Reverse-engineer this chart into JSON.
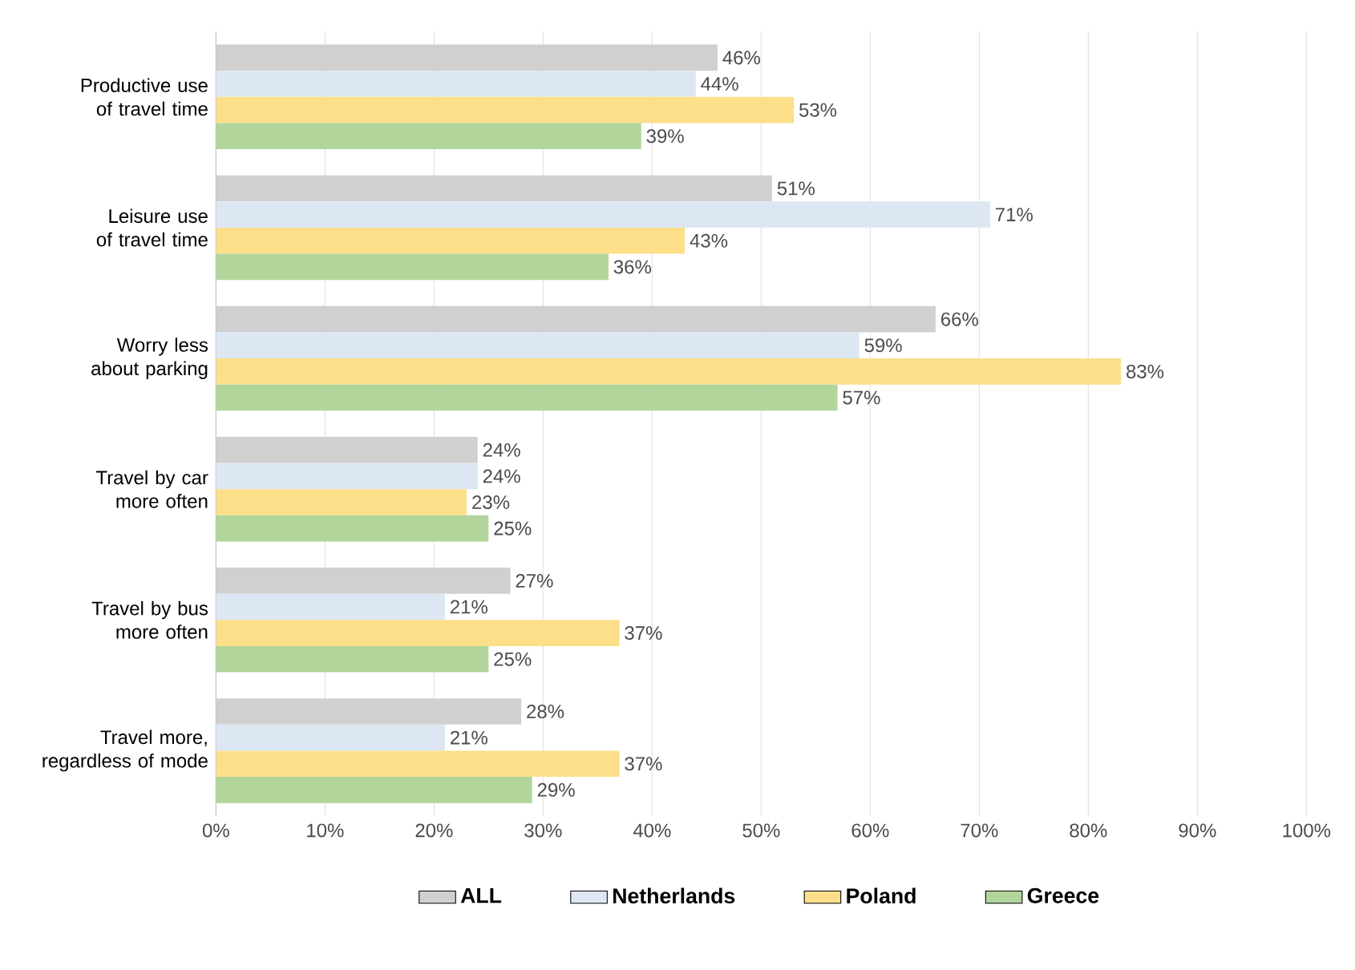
{
  "chart_data": {
    "type": "bar",
    "orientation": "horizontal",
    "categories": [
      "Productive use of travel time",
      "Leisure use of travel time",
      "Worry less about parking",
      "Travel by car more often",
      "Travel by bus more often",
      "Travel more, regardless of mode"
    ],
    "series": [
      {
        "name": "ALL",
        "color": "#d0d0d0",
        "values": [
          46,
          51,
          66,
          24,
          27,
          28
        ],
        "value_labels": [
          "46%",
          "51%",
          "66%",
          "24%",
          "27%",
          "28%"
        ]
      },
      {
        "name": "Netherlands",
        "color": "#dde7f3",
        "values": [
          44,
          71,
          59,
          24,
          21,
          21
        ],
        "value_labels": [
          "44%",
          "71%",
          "59%",
          "24%",
          "21%",
          "21%"
        ]
      },
      {
        "name": "Poland",
        "color": "#fddf8a",
        "values": [
          53,
          43,
          83,
          23,
          37,
          37
        ],
        "value_labels": [
          "53%",
          "43%",
          "83%",
          "23%",
          "37%",
          "37%"
        ]
      },
      {
        "name": "Greece",
        "color": "#b2d59b",
        "values": [
          39,
          36,
          57,
          25,
          25,
          29
        ],
        "value_labels": [
          "39%",
          "36%",
          "57%",
          "25%",
          "25%",
          "29%"
        ]
      }
    ],
    "xlim": [
      0,
      100
    ],
    "xticks": [
      {
        "value": 0,
        "label": "0%"
      },
      {
        "value": 10,
        "label": "10%"
      },
      {
        "value": 20,
        "label": "20%"
      },
      {
        "value": 30,
        "label": "30%"
      },
      {
        "value": 40,
        "label": "40%"
      },
      {
        "value": 50,
        "label": "50%"
      },
      {
        "value": 60,
        "label": "60%"
      },
      {
        "value": 70,
        "label": "70%"
      },
      {
        "value": 80,
        "label": "80%"
      },
      {
        "value": 90,
        "label": "90%"
      },
      {
        "value": 100,
        "label": "100%"
      }
    ],
    "grid": "x",
    "legend": "bottom"
  }
}
